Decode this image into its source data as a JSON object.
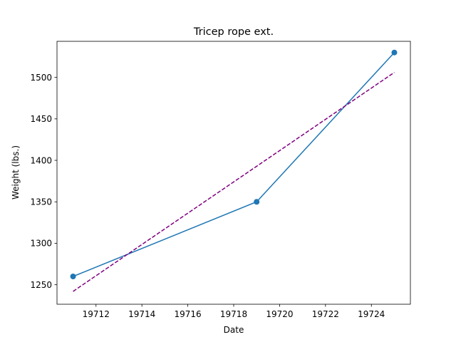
{
  "chart_data": {
    "type": "line",
    "title": "Tricep rope ext.",
    "xlabel": "Date",
    "ylabel": "Weight (lbs.)",
    "xlim": [
      19710.3,
      19725.7
    ],
    "ylim": [
      1226.5,
      1543.5
    ],
    "xticks": [
      19712,
      19714,
      19716,
      19718,
      19720,
      19722,
      19724
    ],
    "yticks": [
      1250,
      1300,
      1350,
      1400,
      1450,
      1500
    ],
    "grid": false,
    "series": [
      {
        "style": "solid-with-markers",
        "color": "#1f77b4",
        "x": [
          19711,
          19719,
          19725
        ],
        "y": [
          1260,
          1350,
          1530
        ]
      },
      {
        "style": "dashed",
        "color": "#800080",
        "x": [
          19711,
          19725
        ],
        "y": [
          1242,
          1506
        ]
      }
    ]
  }
}
